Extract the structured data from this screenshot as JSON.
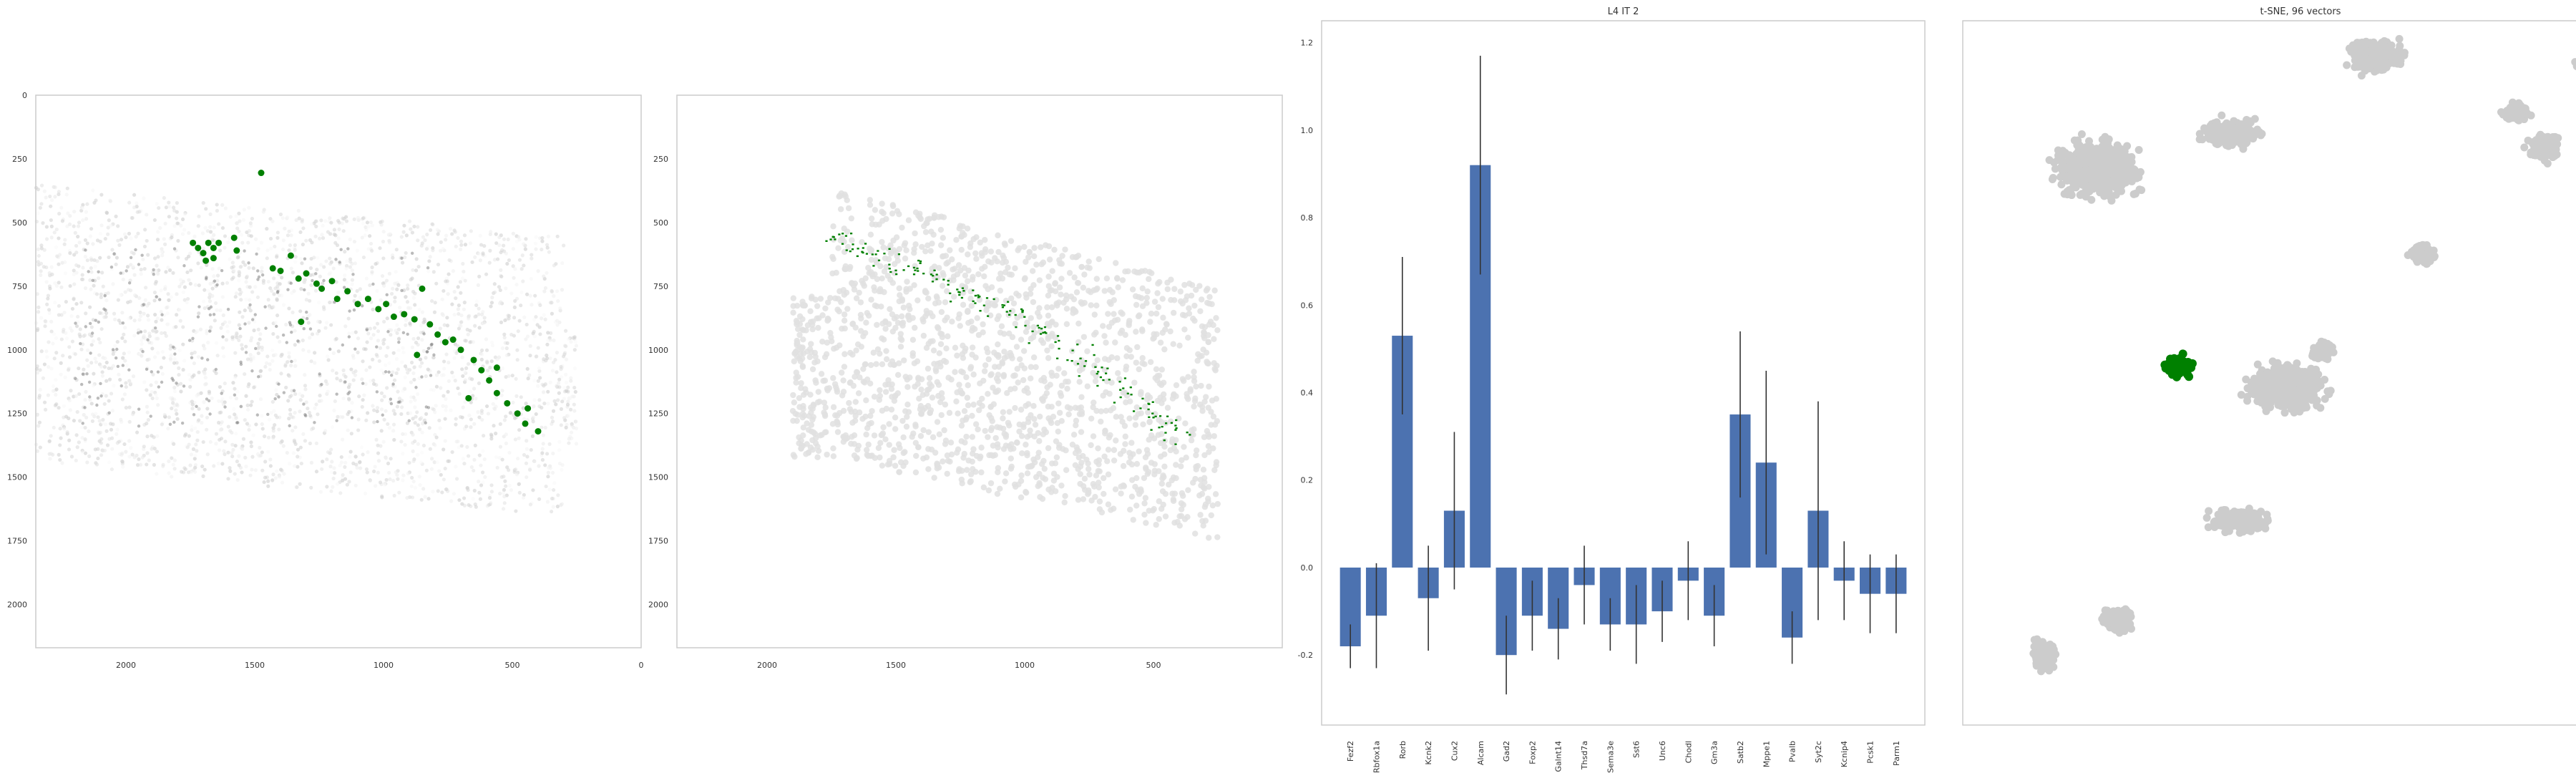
{
  "colors": {
    "highlight": "#008000",
    "cells": "#cccccc",
    "bar": "#4c72b0",
    "errorbar": "#333333",
    "frame": "#cccccc",
    "background": "#ffffff"
  },
  "chart_data": [
    {
      "panel": "spatial-density",
      "type": "scatter",
      "title": "",
      "xlim": [
        2350,
        0
      ],
      "ylim": [
        2170,
        0
      ],
      "xticks": [
        2000,
        1500,
        1000,
        500,
        0
      ],
      "yticks": [
        0,
        250,
        500,
        750,
        1000,
        1250,
        1500,
        1750,
        2000
      ],
      "grid": false,
      "highlight_points": [
        {
          "x": 1475,
          "y": 305
        },
        {
          "x": 1740,
          "y": 580
        },
        {
          "x": 1720,
          "y": 600
        },
        {
          "x": 1700,
          "y": 620
        },
        {
          "x": 1680,
          "y": 580
        },
        {
          "x": 1660,
          "y": 600
        },
        {
          "x": 1640,
          "y": 580
        },
        {
          "x": 1690,
          "y": 650
        },
        {
          "x": 1660,
          "y": 640
        },
        {
          "x": 1580,
          "y": 560
        },
        {
          "x": 1570,
          "y": 610
        },
        {
          "x": 1430,
          "y": 680
        },
        {
          "x": 1400,
          "y": 690
        },
        {
          "x": 1360,
          "y": 630
        },
        {
          "x": 1330,
          "y": 720
        },
        {
          "x": 1300,
          "y": 700
        },
        {
          "x": 1260,
          "y": 740
        },
        {
          "x": 1240,
          "y": 760
        },
        {
          "x": 1200,
          "y": 730
        },
        {
          "x": 1180,
          "y": 800
        },
        {
          "x": 1140,
          "y": 770
        },
        {
          "x": 1100,
          "y": 820
        },
        {
          "x": 1060,
          "y": 800
        },
        {
          "x": 1020,
          "y": 840
        },
        {
          "x": 990,
          "y": 820
        },
        {
          "x": 960,
          "y": 870
        },
        {
          "x": 920,
          "y": 860
        },
        {
          "x": 880,
          "y": 880
        },
        {
          "x": 850,
          "y": 760
        },
        {
          "x": 820,
          "y": 900
        },
        {
          "x": 790,
          "y": 940
        },
        {
          "x": 760,
          "y": 970
        },
        {
          "x": 730,
          "y": 960
        },
        {
          "x": 700,
          "y": 1000
        },
        {
          "x": 650,
          "y": 1040
        },
        {
          "x": 620,
          "y": 1080
        },
        {
          "x": 590,
          "y": 1120
        },
        {
          "x": 560,
          "y": 1170
        },
        {
          "x": 520,
          "y": 1210
        },
        {
          "x": 480,
          "y": 1250
        },
        {
          "x": 450,
          "y": 1290
        },
        {
          "x": 400,
          "y": 1320
        },
        {
          "x": 1320,
          "y": 890
        },
        {
          "x": 870,
          "y": 1020
        },
        {
          "x": 670,
          "y": 1190
        },
        {
          "x": 560,
          "y": 1070
        },
        {
          "x": 440,
          "y": 1230
        }
      ]
    },
    {
      "panel": "spatial-segmentation",
      "type": "scatter",
      "title": "",
      "xlim": [
        2350,
        0
      ],
      "ylim": [
        2170,
        0
      ],
      "xticks": [
        2000,
        1500,
        1000,
        500
      ],
      "yticks": [
        250,
        500,
        750,
        1000,
        1250,
        1500,
        1750,
        2000
      ],
      "grid": false,
      "highlight_band": [
        {
          "x": 1730,
          "y": 570
        },
        {
          "x": 1660,
          "y": 600
        },
        {
          "x": 1590,
          "y": 620
        },
        {
          "x": 1500,
          "y": 660
        },
        {
          "x": 1420,
          "y": 690
        },
        {
          "x": 1340,
          "y": 720
        },
        {
          "x": 1260,
          "y": 760
        },
        {
          "x": 1180,
          "y": 800
        },
        {
          "x": 1100,
          "y": 840
        },
        {
          "x": 1020,
          "y": 880
        },
        {
          "x": 940,
          "y": 930
        },
        {
          "x": 860,
          "y": 980
        },
        {
          "x": 780,
          "y": 1030
        },
        {
          "x": 700,
          "y": 1100
        },
        {
          "x": 620,
          "y": 1160
        },
        {
          "x": 540,
          "y": 1220
        },
        {
          "x": 470,
          "y": 1280
        },
        {
          "x": 410,
          "y": 1320
        }
      ]
    },
    {
      "panel": "gene-bars",
      "type": "bar",
      "title": "L4 IT 2",
      "categories": [
        "Fezf2",
        "Rbfox1a",
        "Rorb",
        "Kcnk2",
        "Cux2",
        "Alcam",
        "Gad2",
        "Foxp2",
        "Galnt14",
        "Thsd7a",
        "Sema3e",
        "Sst6",
        "Unc6",
        "Chodl",
        "Gm3a",
        "Satb2",
        "Mppe1",
        "Pvalb",
        "Syt2c",
        "Kcnip4",
        "Pcsk1",
        "Parm1"
      ],
      "values": [
        -0.18,
        -0.11,
        0.53,
        -0.07,
        0.13,
        0.92,
        -0.2,
        -0.11,
        -0.14,
        -0.04,
        -0.13,
        -0.13,
        -0.1,
        -0.03,
        -0.11,
        0.35,
        0.24,
        -0.16,
        0.13,
        -0.03,
        -0.06,
        -0.06
      ],
      "errors": [
        0.05,
        0.12,
        0.18,
        0.12,
        0.18,
        0.25,
        0.09,
        0.08,
        0.07,
        0.09,
        0.06,
        0.09,
        0.07,
        0.09,
        0.07,
        0.19,
        0.21,
        0.06,
        0.25,
        0.09,
        0.09,
        0.09
      ],
      "ylim": [
        -0.36,
        1.25
      ],
      "yticks": [
        "-0.2",
        "0.0",
        "0.2",
        "0.4",
        "0.6",
        "0.8",
        "1.0",
        "1.2"
      ],
      "grid": false
    },
    {
      "panel": "tsne",
      "type": "scatter",
      "title": "t-SNE, 96 vectors",
      "xlim": [
        0,
        100
      ],
      "ylim": [
        0,
        100
      ],
      "grid": false,
      "clusters": [
        {
          "x": 61,
          "y": 95,
          "rx": 4.2,
          "ry": 2.5
        },
        {
          "x": 40,
          "y": 84,
          "rx": 4.8,
          "ry": 2.2
        },
        {
          "x": 20,
          "y": 79,
          "rx": 6.5,
          "ry": 4.2
        },
        {
          "x": 53,
          "y": 53,
          "rx": 2.0,
          "ry": 1.5
        },
        {
          "x": 48,
          "y": 48,
          "rx": 6.5,
          "ry": 3.5
        },
        {
          "x": 68,
          "y": 67,
          "rx": 2.0,
          "ry": 1.5
        },
        {
          "x": 86,
          "y": 82,
          "rx": 2.5,
          "ry": 2.0
        },
        {
          "x": 92,
          "y": 94,
          "rx": 1.5,
          "ry": 1.0
        },
        {
          "x": 41,
          "y": 29,
          "rx": 4.5,
          "ry": 1.8
        },
        {
          "x": 82,
          "y": 87,
          "rx": 2.5,
          "ry": 1.5
        },
        {
          "x": 23,
          "y": 15,
          "rx": 2.4,
          "ry": 2.0
        },
        {
          "x": 12,
          "y": 10,
          "rx": 2.0,
          "ry": 2.5
        }
      ],
      "highlight_center": {
        "x": 32,
        "y": 51,
        "rx": 2.8,
        "ry": 2.2
      }
    }
  ]
}
